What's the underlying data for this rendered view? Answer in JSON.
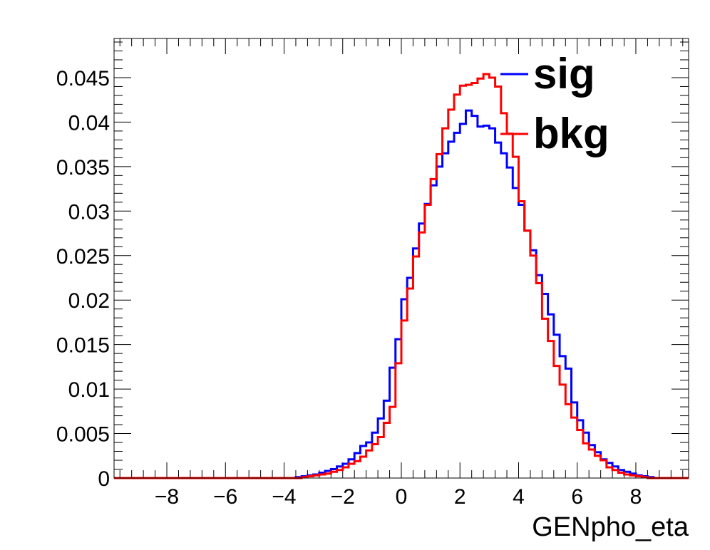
{
  "chart_data": {
    "type": "line",
    "title": "",
    "xlabel": "GENpho_eta",
    "ylabel": "",
    "xlim": [
      -9.8,
      9.8
    ],
    "ylim": [
      0,
      0.0494
    ],
    "x_ticks": [
      -8,
      -6,
      -4,
      -2,
      0,
      2,
      4,
      6,
      8
    ],
    "x_tick_labels": [
      "−8",
      "−6",
      "−4",
      "−2",
      "0",
      "2",
      "4",
      "6",
      "8"
    ],
    "y_ticks": [
      0,
      0.005,
      0.01,
      0.015,
      0.02,
      0.025,
      0.03,
      0.035,
      0.04,
      0.045
    ],
    "y_tick_labels": [
      "0",
      "0.005",
      "0.01",
      "0.015",
      "0.02",
      "0.025",
      "0.03",
      "0.035",
      "0.04",
      "0.045"
    ],
    "legend_position": "top-right",
    "bins": {
      "low": -9.8,
      "high": 9.8,
      "count": 98
    },
    "series": [
      {
        "name": "sig",
        "color": "#0000ff",
        "values": [
          0,
          0,
          0,
          0,
          0,
          0,
          0,
          0,
          0,
          0,
          0,
          0,
          0,
          0,
          0,
          0,
          0,
          0,
          0,
          0,
          0,
          0,
          0,
          0,
          0,
          0,
          0,
          0,
          0,
          0,
          0,
          0.0001,
          0.0002,
          0.0003,
          0.0004,
          0.0006,
          0.0008,
          0.001,
          0.0013,
          0.0016,
          0.0021,
          0.0028,
          0.0036,
          0.004,
          0.0051,
          0.0067,
          0.0087,
          0.0124,
          0.0156,
          0.0201,
          0.0225,
          0.0258,
          0.0286,
          0.0308,
          0.0329,
          0.035,
          0.0365,
          0.0378,
          0.0388,
          0.0398,
          0.0413,
          0.0407,
          0.0395,
          0.0396,
          0.0393,
          0.0377,
          0.0365,
          0.0349,
          0.0326,
          0.0307,
          0.0278,
          0.0256,
          0.0228,
          0.0207,
          0.0184,
          0.0161,
          0.0137,
          0.0123,
          0.0085,
          0.0065,
          0.0051,
          0.0037,
          0.0029,
          0.0021,
          0.0017,
          0.0013,
          0.0009,
          0.0007,
          0.0005,
          0.0003,
          0.0002,
          0.0001,
          0,
          0,
          0,
          0,
          0,
          0
        ]
      },
      {
        "name": "bkg",
        "color": "#ff0000",
        "values": [
          0,
          0,
          0,
          0,
          0,
          0,
          0,
          0,
          0,
          0,
          0,
          0,
          0,
          0,
          0,
          0,
          0,
          0,
          0,
          0,
          0,
          0,
          0,
          0,
          0,
          0,
          0,
          0,
          0,
          0,
          0,
          0,
          0.0001,
          0.0002,
          0.0003,
          0.0004,
          0.0005,
          0.0007,
          0.0009,
          0.0012,
          0.0016,
          0.0019,
          0.0024,
          0.0031,
          0.0038,
          0.0046,
          0.0062,
          0.008,
          0.0129,
          0.0177,
          0.0213,
          0.0249,
          0.0276,
          0.0307,
          0.0336,
          0.0364,
          0.0393,
          0.0414,
          0.0431,
          0.0441,
          0.0442,
          0.0444,
          0.0449,
          0.0454,
          0.045,
          0.044,
          0.041,
          0.0387,
          0.0361,
          0.0311,
          0.0278,
          0.025,
          0.0219,
          0.0179,
          0.0154,
          0.0126,
          0.0105,
          0.0083,
          0.0068,
          0.0054,
          0.0039,
          0.0032,
          0.0025,
          0.002,
          0.0012,
          0.0009,
          0.0006,
          0.0004,
          0.0003,
          0.0002,
          0.0001,
          0,
          0,
          0,
          0,
          0,
          0,
          0
        ]
      }
    ]
  }
}
